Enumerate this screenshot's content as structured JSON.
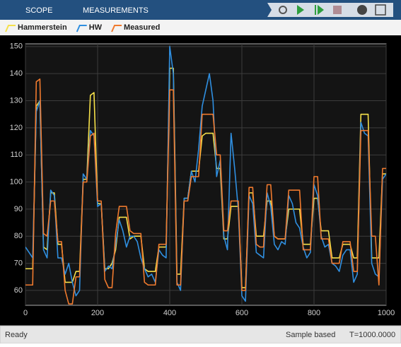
{
  "toolbar": {
    "tabs": [
      "SCOPE",
      "MEASUREMENTS"
    ]
  },
  "status": {
    "left": "Ready",
    "mode": "Sample based",
    "time": "T=1000.0000"
  },
  "chart_data": {
    "type": "line",
    "x": [
      0,
      10,
      20,
      30,
      40,
      50,
      60,
      70,
      80,
      90,
      100,
      110,
      120,
      130,
      140,
      150,
      160,
      170,
      180,
      190,
      200,
      210,
      220,
      230,
      240,
      250,
      260,
      270,
      280,
      290,
      300,
      310,
      320,
      330,
      340,
      350,
      360,
      370,
      380,
      390,
      400,
      410,
      420,
      430,
      440,
      450,
      460,
      470,
      480,
      490,
      500,
      510,
      520,
      530,
      540,
      550,
      560,
      570,
      580,
      590,
      600,
      610,
      620,
      630,
      640,
      650,
      660,
      670,
      680,
      690,
      700,
      710,
      720,
      730,
      740,
      750,
      760,
      770,
      780,
      790,
      800,
      810,
      820,
      830,
      840,
      850,
      860,
      870,
      880,
      890,
      900,
      910,
      920,
      930,
      940,
      950,
      960,
      970,
      980,
      990,
      1000
    ],
    "series": [
      {
        "name": "Hammerstein",
        "color": "#f5e04a",
        "values": [
          68,
          68,
          68,
          128,
          130,
          76,
          75,
          96,
          96,
          77,
          77,
          63,
          63,
          63,
          67,
          67,
          101,
          101,
          132,
          133,
          92,
          92,
          68,
          68,
          70,
          75,
          87,
          87,
          87,
          79,
          80,
          80,
          80,
          68,
          67,
          67,
          67,
          76,
          76,
          76,
          142,
          142,
          66,
          66,
          94,
          94,
          104,
          104,
          104,
          117,
          118,
          118,
          118,
          105,
          105,
          79,
          79,
          91,
          91,
          91,
          61,
          61,
          96,
          96,
          80,
          80,
          80,
          93,
          93,
          80,
          79,
          79,
          79,
          90,
          90,
          90,
          90,
          77,
          77,
          77,
          94,
          94,
          82,
          82,
          82,
          72,
          72,
          72,
          77,
          77,
          77,
          72,
          72,
          125,
          125,
          125,
          72,
          72,
          72,
          103,
          103
        ]
      },
      {
        "name": "HW",
        "color": "#2f8fe0",
        "values": [
          76,
          74,
          72,
          126,
          130,
          75,
          72,
          97,
          95,
          72,
          72,
          66,
          70,
          63,
          58,
          60,
          103,
          101,
          119,
          117,
          91,
          92,
          67,
          69,
          68,
          77,
          86,
          82,
          76,
          80,
          80,
          78,
          72,
          68,
          65,
          66,
          63,
          75,
          73,
          72,
          150,
          140,
          63,
          60,
          94,
          94,
          104,
          100,
          112,
          128,
          134,
          140,
          130,
          102,
          108,
          80,
          75,
          118,
          105,
          90,
          58,
          56,
          95,
          92,
          74,
          73,
          72,
          96,
          91,
          77,
          75,
          78,
          77,
          95,
          92,
          85,
          83,
          76,
          72,
          74,
          99,
          95,
          80,
          76,
          77,
          70,
          69,
          67,
          73,
          75,
          75,
          63,
          66,
          122,
          118,
          117,
          70,
          66,
          65,
          101,
          103
        ]
      },
      {
        "name": "Measured",
        "color": "#f07a2e",
        "values": [
          62,
          62,
          62,
          137,
          138,
          81,
          80,
          93,
          93,
          78,
          78,
          60,
          55,
          55,
          65,
          65,
          100,
          100,
          117,
          118,
          93,
          93,
          64,
          61,
          61,
          81,
          91,
          91,
          91,
          82,
          81,
          81,
          81,
          63,
          62,
          62,
          62,
          77,
          77,
          77,
          134,
          134,
          62,
          62,
          93,
          93,
          102,
          102,
          102,
          125,
          125,
          125,
          125,
          110,
          110,
          82,
          82,
          93,
          93,
          93,
          60,
          60,
          98,
          98,
          77,
          76,
          76,
          99,
          99,
          80,
          79,
          79,
          79,
          97,
          97,
          97,
          97,
          75,
          75,
          75,
          102,
          102,
          79,
          79,
          79,
          70,
          70,
          70,
          78,
          78,
          78,
          67,
          67,
          119,
          119,
          119,
          80,
          80,
          62,
          105,
          105
        ]
      }
    ],
    "xlim": [
      0,
      1000
    ],
    "xticks": [
      0,
      200,
      400,
      600,
      800,
      1000
    ],
    "ylim": [
      54.5,
      151
    ],
    "yticks": [
      60,
      70,
      80,
      90,
      100,
      110,
      120,
      130,
      140,
      150
    ],
    "grid": true
  }
}
